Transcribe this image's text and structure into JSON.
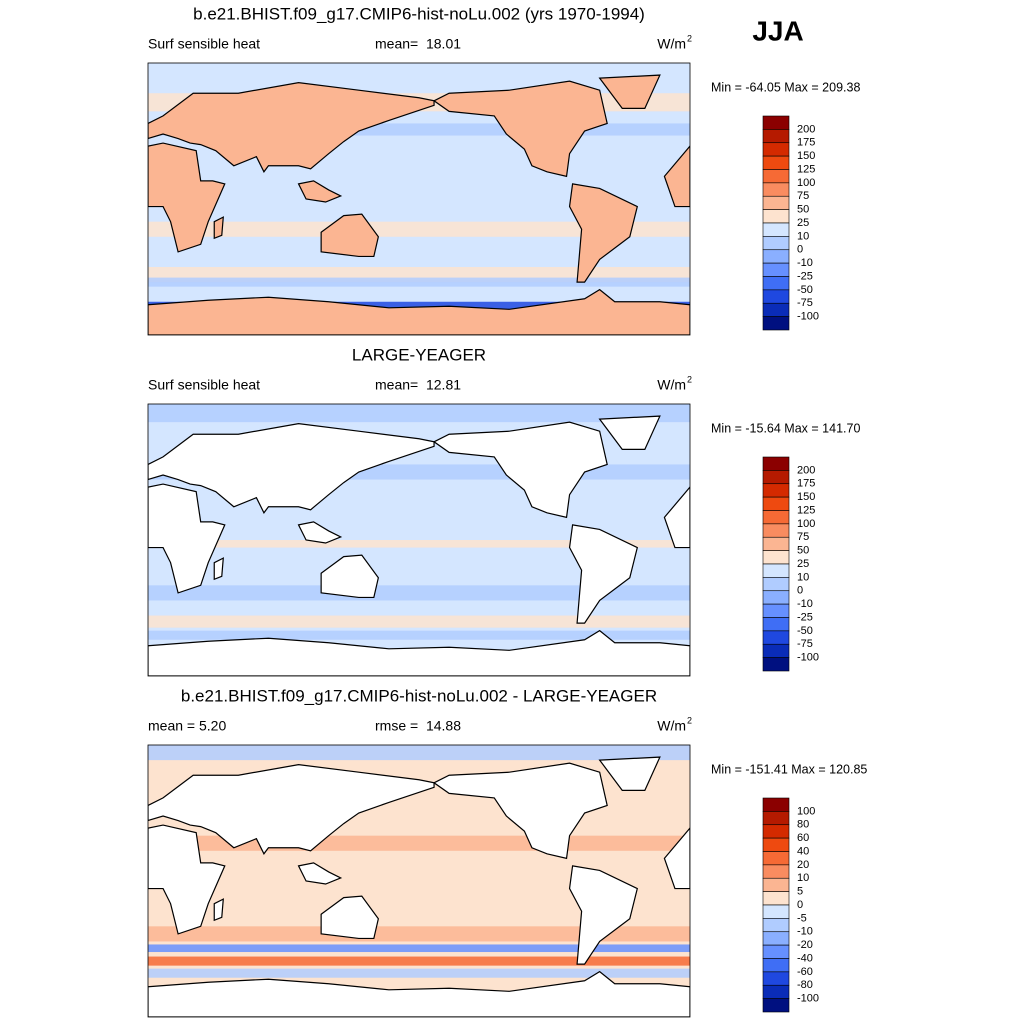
{
  "season": "JJA",
  "panels": [
    {
      "title": "b.e21.BHIST.f09_g17.CMIP6-hist-noLu.002 (yrs 1970-1994)",
      "left_label": "Surf sensible heat",
      "center_label": "mean=  18.01",
      "units": "W/m",
      "units_exponent": "2",
      "range_label": "Min = -64.05 Max = 209.38",
      "colorbar": {
        "levels": [
          200,
          175,
          150,
          125,
          100,
          75,
          50,
          25,
          10,
          0,
          -10,
          -25,
          -50,
          -75,
          -100
        ],
        "colors": [
          "#8b0000",
          "#b51a00",
          "#d42a00",
          "#ee4a10",
          "#f66a35",
          "#f98c60",
          "#fbb592",
          "#fde3cf",
          "#d4e6ff",
          "#b0ccff",
          "#8aafff",
          "#6690ff",
          "#3f6ef5",
          "#1f48e0",
          "#0a2cb8",
          "#001080"
        ]
      }
    },
    {
      "title": "LARGE-YEAGER",
      "left_label": "Surf sensible heat",
      "center_label": "mean=  12.81",
      "units": "W/m",
      "units_exponent": "2",
      "range_label": "Min = -15.64 Max = 141.70",
      "colorbar": {
        "levels": [
          200,
          175,
          150,
          125,
          100,
          75,
          50,
          25,
          10,
          0,
          -10,
          -25,
          -50,
          -75,
          -100
        ],
        "colors": [
          "#8b0000",
          "#b51a00",
          "#d42a00",
          "#ee4a10",
          "#f66a35",
          "#f98c60",
          "#fbb592",
          "#fde3cf",
          "#d4e6ff",
          "#b0ccff",
          "#8aafff",
          "#6690ff",
          "#3f6ef5",
          "#1f48e0",
          "#0a2cb8",
          "#001080"
        ]
      }
    },
    {
      "title": "b.e21.BHIST.f09_g17.CMIP6-hist-noLu.002 - LARGE-YEAGER",
      "left_label": "mean =   5.20",
      "center_label": "rmse =  14.88",
      "units": "W/m",
      "units_exponent": "2",
      "range_label": "Min = -151.41 Max = 120.85",
      "colorbar": {
        "levels": [
          100,
          80,
          60,
          40,
          20,
          10,
          5,
          0,
          -5,
          -10,
          -20,
          -40,
          -60,
          -80,
          -100
        ],
        "colors": [
          "#8b0000",
          "#b51a00",
          "#d42a00",
          "#ee4a10",
          "#f66a35",
          "#f98c60",
          "#fbb592",
          "#fde3cf",
          "#d4e6ff",
          "#b0ccff",
          "#8aafff",
          "#6690ff",
          "#3f6ef5",
          "#1f48e0",
          "#0a2cb8",
          "#001080"
        ]
      }
    }
  ]
}
